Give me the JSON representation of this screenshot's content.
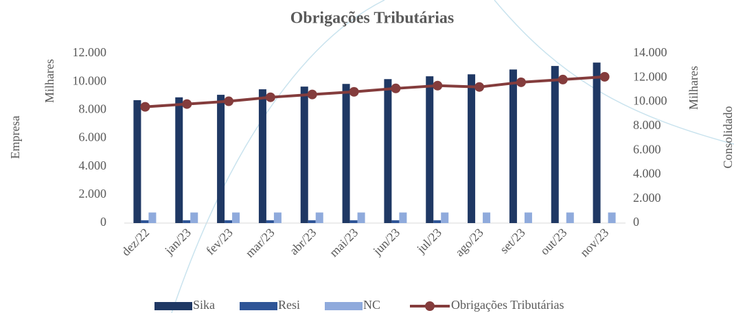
{
  "chart_data": {
    "type": "bar",
    "title": "Obrigações Tributárias",
    "categories": [
      "dez/22",
      "jan/23",
      "fev/23",
      "mar/23",
      "abr/23",
      "mai/23",
      "jun/23",
      "jul/23",
      "ago/23",
      "set/23",
      "out/23",
      "nov/23"
    ],
    "y_label": "Empresa",
    "y_unit": "Milhares",
    "y2_label": "Consolidado",
    "y2_unit": "Milhares",
    "ylim": [
      0,
      12000
    ],
    "yticks": [
      0,
      {
        "value": 2000,
        "label": "2.000"
      },
      {
        "value": 4000,
        "label": "4.000"
      },
      {
        "value": 6000,
        "label": "6.000"
      },
      {
        "value": 8000,
        "label": "8.000"
      },
      {
        "value": 10000,
        "label": "10.000"
      },
      {
        "value": 12000,
        "label": "12.000"
      }
    ],
    "y2lim": [
      0,
      14000
    ],
    "y2ticks": [
      0,
      {
        "value": 2000,
        "label": "2.000"
      },
      {
        "value": 4000,
        "label": "4.000"
      },
      {
        "value": 6000,
        "label": "6.000"
      },
      {
        "value": 8000,
        "label": "8.000"
      },
      {
        "value": 10000,
        "label": "10.000"
      },
      {
        "value": 12000,
        "label": "12.000"
      },
      {
        "value": 14000,
        "label": "14.000"
      }
    ],
    "series": [
      {
        "name": "Sika",
        "type": "bar",
        "color": "#1f3864",
        "values": [
          8700,
          8900,
          9080,
          9470,
          9660,
          9850,
          10190,
          10390,
          10530,
          10870,
          11120,
          11360
        ]
      },
      {
        "name": "Resi",
        "type": "bar",
        "color": "#2f5597",
        "values": [
          200,
          200,
          200,
          200,
          200,
          200,
          200,
          200,
          0,
          0,
          0,
          0
        ]
      },
      {
        "name": "NC",
        "type": "bar",
        "color": "#8faadc",
        "values": [
          750,
          750,
          750,
          750,
          750,
          750,
          750,
          750,
          750,
          750,
          750,
          750
        ]
      },
      {
        "name": "Obrigações Tributárias",
        "type": "line",
        "axis": "y2",
        "color": "#843c3c",
        "values": [
          9600,
          9830,
          10060,
          10390,
          10620,
          10840,
          11120,
          11350,
          11240,
          11630,
          11850,
          12080
        ]
      }
    ]
  }
}
